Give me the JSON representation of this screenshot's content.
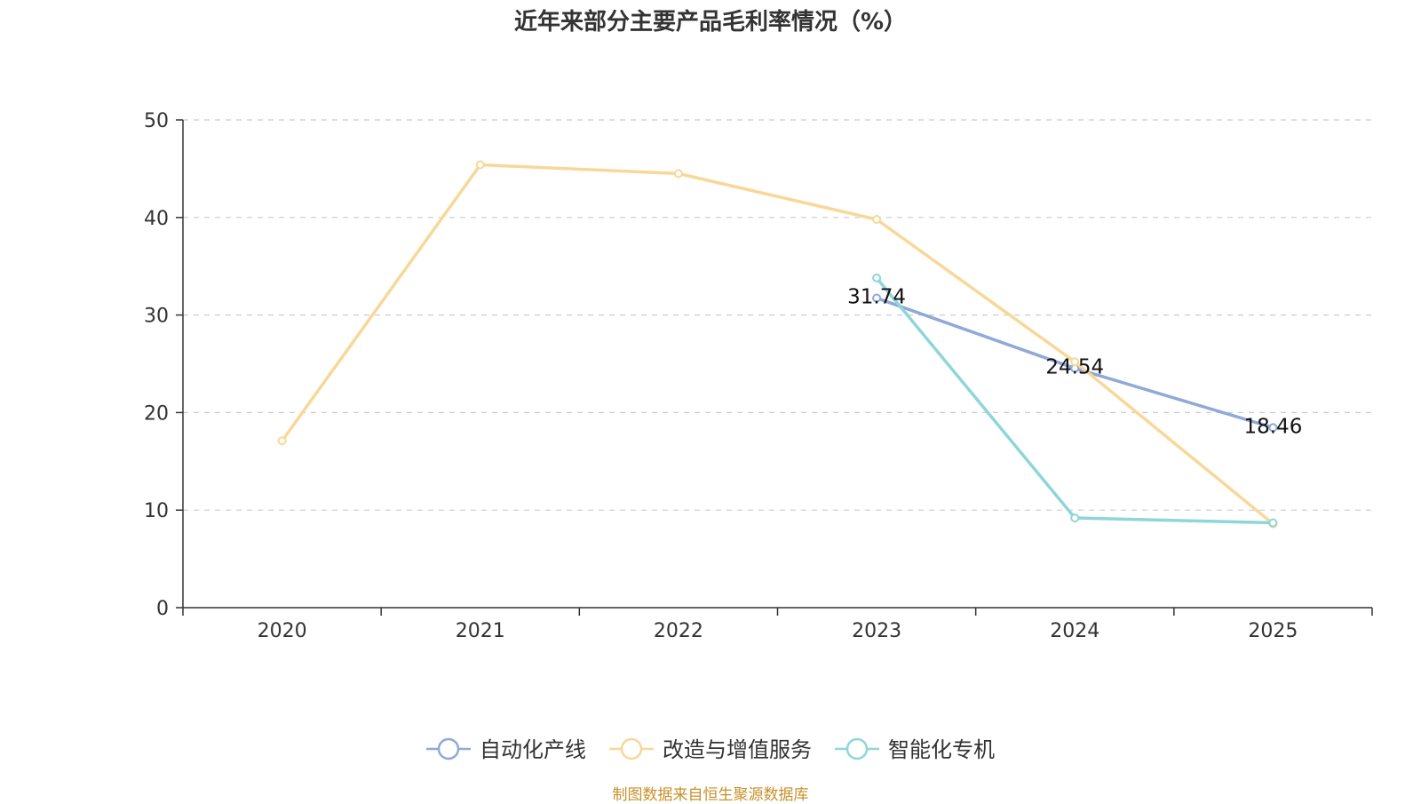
{
  "chart_data": {
    "type": "line",
    "title": "近年来部分主要产品毛利率情况（%）",
    "categories": [
      "2020",
      "2021",
      "2022",
      "2023",
      "2024",
      "2025"
    ],
    "ylim": [
      0,
      50
    ],
    "yticks": [
      0,
      10,
      20,
      30,
      40,
      50
    ],
    "grid": true,
    "xlabel": "",
    "ylabel": "",
    "legend_position": "bottom",
    "series": [
      {
        "name": "自动化产线",
        "color": "#8fa9d8",
        "values": [
          null,
          null,
          null,
          31.74,
          24.54,
          18.46
        ],
        "labels": [
          null,
          null,
          null,
          "31.74",
          "24.54",
          "18.46"
        ]
      },
      {
        "name": "改造与增值服务",
        "color": "#f8d898",
        "values": [
          17.1,
          45.4,
          44.5,
          39.8,
          25.2,
          8.6
        ],
        "labels": [
          null,
          null,
          null,
          null,
          null,
          null
        ]
      },
      {
        "name": "智能化专机",
        "color": "#8ed6d9",
        "values": [
          null,
          null,
          null,
          33.8,
          9.2,
          8.7
        ],
        "labels": [
          null,
          null,
          null,
          null,
          null,
          null
        ]
      }
    ]
  },
  "source": "制图数据来自恒生聚源数据库"
}
